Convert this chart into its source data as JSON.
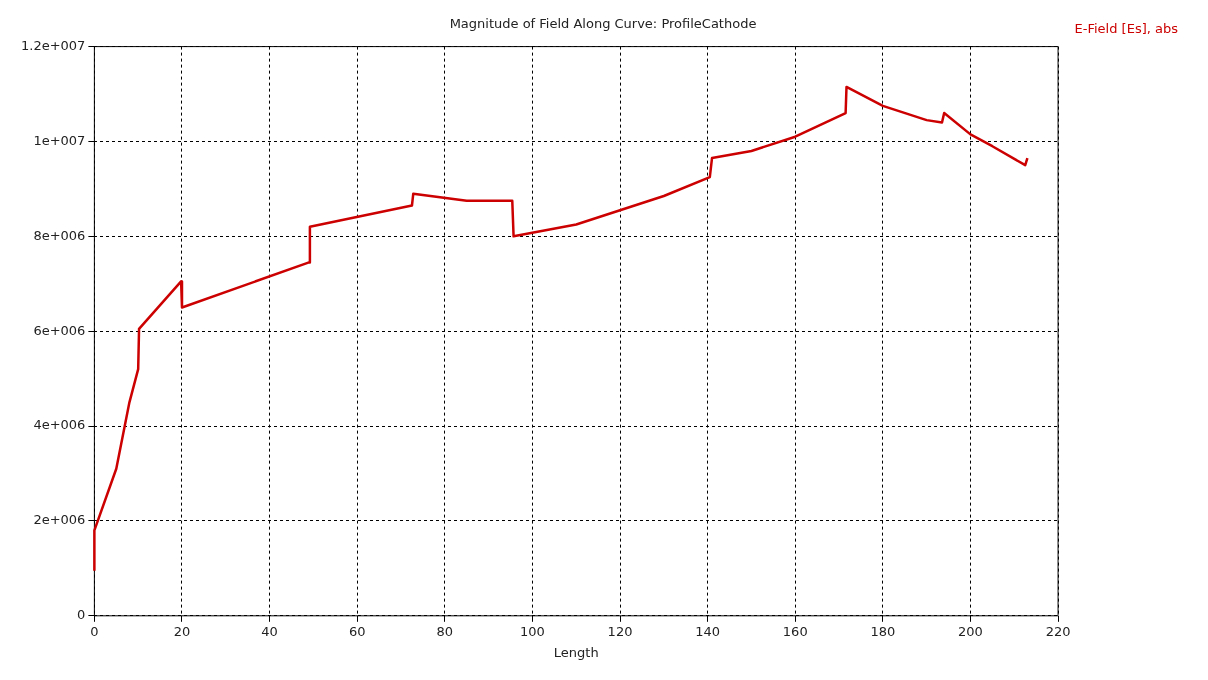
{
  "chart_data": {
    "type": "line",
    "title": "Magnitude of Field Along Curve: ProfileCathode",
    "xlabel": "Length",
    "x": [
      0,
      0,
      5,
      8,
      10,
      10.2,
      19.8,
      20,
      49,
      49.2,
      72.5,
      72.8,
      85,
      95.4,
      95.7,
      110,
      120,
      130,
      140.5,
      141,
      150,
      160,
      171.5,
      171.7,
      180,
      190,
      193.5,
      194,
      200,
      205,
      212.5,
      213
    ],
    "series": [
      {
        "name": "E-Field [Es], abs",
        "color": "#cc0000",
        "values": [
          950000,
          1800000,
          3100000,
          4500000,
          5200000,
          6050000,
          7050000,
          6500000,
          7450000,
          8200000,
          8650000,
          8900000,
          8750000,
          8750000,
          8000000,
          8250000,
          8550000,
          8850000,
          9250000,
          9650000,
          9800000,
          10100000,
          10600000,
          11150000,
          10750000,
          10450000,
          10400000,
          10600000,
          10150000,
          9900000,
          9500000,
          9650000
        ]
      }
    ],
    "xlim": [
      0,
      220
    ],
    "xticks": [
      0,
      20,
      40,
      60,
      80,
      100,
      120,
      140,
      160,
      180,
      200,
      220
    ],
    "ylim": [
      0,
      12000000
    ],
    "yticks": [
      0,
      {
        "value": 2000000,
        "label": "2e+006"
      },
      {
        "value": 4000000,
        "label": "4e+006"
      },
      {
        "value": 6000000,
        "label": "6e+006"
      },
      {
        "value": 8000000,
        "label": "8e+006"
      },
      {
        "value": 10000000,
        "label": "1e+007"
      },
      {
        "value": 12000000,
        "label": "1.2e+007"
      }
    ],
    "grid": true,
    "legend": "top right",
    "marker": "none",
    "line_style": "solid"
  }
}
